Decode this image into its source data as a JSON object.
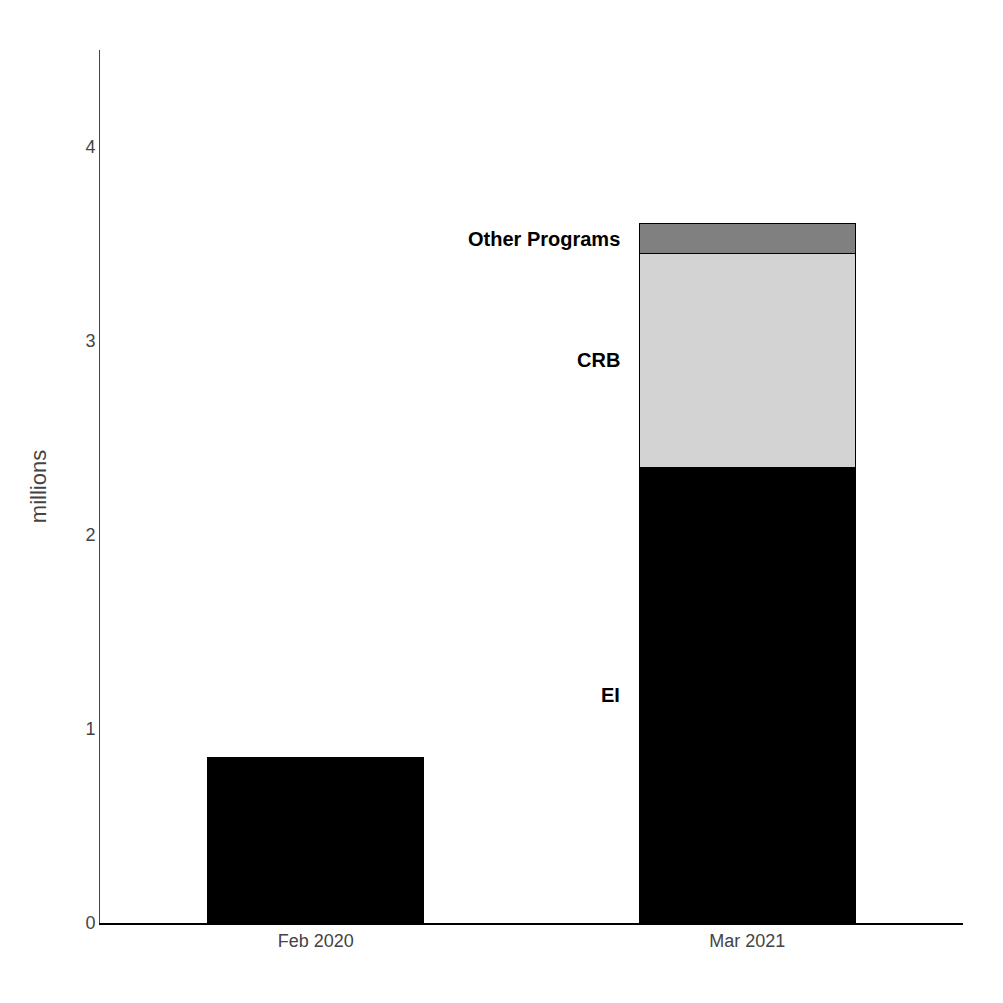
{
  "chart_data": {
    "type": "bar",
    "stacked": true,
    "categories": [
      "Feb 2020",
      "Mar 2021"
    ],
    "series": [
      {
        "name": "EI",
        "color": "#000000",
        "values": [
          0.855,
          2.35
        ]
      },
      {
        "name": "CRB",
        "color": "#d3d3d3",
        "values": [
          0.0,
          1.1
        ]
      },
      {
        "name": "Other Programs",
        "color": "#808080",
        "values": [
          0.0,
          0.155
        ]
      }
    ],
    "ylabel": "millions",
    "ylim": [
      0,
      4.5
    ],
    "yticks": [
      0,
      1,
      2,
      3,
      4
    ],
    "grid": false
  }
}
